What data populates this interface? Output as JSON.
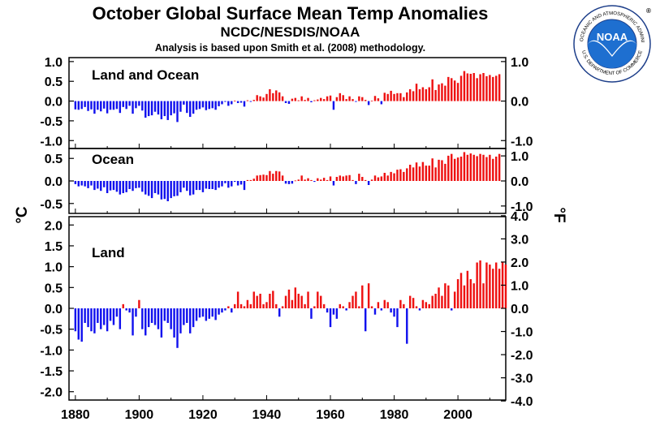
{
  "header": {
    "title": "October Global Surface Mean Temp Anomalies",
    "subtitle": "NCDC/NESDIS/NOAA",
    "note": "Analysis is based upon Smith et al. (2008) methodology."
  },
  "logo": {
    "center_text": "NOAA",
    "ring_top": "NATIONAL OCEANIC AND ATMOSPHERIC ADMINISTRATION",
    "ring_bottom": "U.S. DEPARTMENT OF COMMERCE",
    "registered": "®"
  },
  "colors": {
    "positive": "#ee1111",
    "negative": "#1111ee",
    "logo_blue": "#1e6fd0"
  },
  "axis_labels": {
    "left": "°C",
    "right": "°F"
  },
  "chart_data": [
    {
      "type": "bar",
      "title": "Land and Ocean",
      "xlim": [
        1878,
        2015
      ],
      "ylim": [
        -1.2,
        1.1
      ],
      "yticks": [
        1.0,
        0.5,
        0.0,
        -0.5,
        -1.0
      ],
      "ytick_labels": [
        "1.0",
        "0.5",
        "0.0",
        "-0.5",
        "-1.0"
      ],
      "right_ticks": [
        1.0,
        0.0,
        -1.0
      ],
      "right_tick_labels": [
        "1.0",
        "0.0",
        "-1.0"
      ],
      "x_start": 1880,
      "values": [
        -0.21,
        -0.22,
        -0.2,
        -0.15,
        -0.25,
        -0.21,
        -0.32,
        -0.22,
        -0.26,
        -0.19,
        -0.31,
        -0.22,
        -0.22,
        -0.2,
        -0.3,
        -0.15,
        -0.2,
        -0.12,
        -0.32,
        -0.18,
        -0.12,
        -0.24,
        -0.42,
        -0.38,
        -0.36,
        -0.27,
        -0.34,
        -0.46,
        -0.38,
        -0.48,
        -0.36,
        -0.31,
        -0.53,
        -0.27,
        -0.09,
        -0.3,
        -0.4,
        -0.32,
        -0.22,
        -0.2,
        -0.16,
        -0.23,
        -0.2,
        -0.18,
        -0.22,
        -0.13,
        -0.08,
        -0.02,
        -0.12,
        -0.08,
        0.01,
        -0.05,
        -0.04,
        -0.14,
        0.02,
        -0.02,
        0.03,
        0.15,
        0.12,
        0.09,
        0.18,
        0.3,
        0.2,
        0.27,
        0.22,
        0.12,
        -0.05,
        -0.07,
        0.06,
        0.08,
        0.02,
        0.12,
        0.03,
        0.08,
        -0.03,
        0.02,
        0.04,
        0.08,
        0.05,
        0.12,
        0.14,
        -0.22,
        0.1,
        0.2,
        0.15,
        0.05,
        0.12,
        0.05,
        -0.02,
        0.12,
        0.1,
        0.03,
        -0.1,
        0.01,
        0.13,
        0.07,
        -0.08,
        0.21,
        0.18,
        0.26,
        0.18,
        0.2,
        0.2,
        0.1,
        0.22,
        0.3,
        0.25,
        0.44,
        0.3,
        0.35,
        0.3,
        0.35,
        0.55,
        0.28,
        0.42,
        0.45,
        0.39,
        0.61,
        0.58,
        0.52,
        0.46,
        0.64,
        0.76,
        0.7,
        0.69,
        0.71,
        0.58,
        0.68,
        0.71,
        0.63,
        0.66,
        0.61,
        0.64,
        0.68
      ]
    },
    {
      "type": "bar",
      "title": "Ocean",
      "xlim": [
        1878,
        2015
      ],
      "ylim": [
        -0.72,
        0.72
      ],
      "yticks": [
        0.5,
        0.0,
        -0.5
      ],
      "ytick_labels": [
        "0.5",
        "0.0",
        "-0.5"
      ],
      "right_ticks": [
        0.5556,
        0.0,
        -0.5556
      ],
      "right_tick_labels": [
        "1.0",
        "0.0",
        "-1.0"
      ],
      "x_start": 1880,
      "values": [
        -0.07,
        -0.12,
        -0.1,
        -0.12,
        -0.16,
        -0.1,
        -0.2,
        -0.17,
        -0.22,
        -0.14,
        -0.27,
        -0.21,
        -0.2,
        -0.24,
        -0.3,
        -0.27,
        -0.25,
        -0.18,
        -0.22,
        -0.16,
        -0.15,
        -0.24,
        -0.3,
        -0.33,
        -0.38,
        -0.27,
        -0.3,
        -0.41,
        -0.4,
        -0.45,
        -0.38,
        -0.34,
        -0.33,
        -0.25,
        -0.15,
        -0.22,
        -0.32,
        -0.3,
        -0.2,
        -0.2,
        -0.25,
        -0.17,
        -0.18,
        -0.18,
        -0.2,
        -0.15,
        -0.12,
        -0.05,
        -0.15,
        -0.12,
        -0.02,
        -0.1,
        -0.08,
        -0.2,
        0.02,
        0.02,
        0.05,
        0.12,
        0.13,
        0.14,
        0.13,
        0.22,
        0.16,
        0.22,
        0.21,
        0.12,
        -0.06,
        -0.07,
        -0.06,
        0.01,
        0.03,
        0.12,
        0.03,
        0.06,
        0.02,
        -0.02,
        0.06,
        0.03,
        0.07,
        0.02,
        0.1,
        -0.1,
        0.09,
        0.12,
        0.1,
        0.12,
        0.13,
        0.02,
        -0.07,
        0.16,
        0.09,
        0.02,
        -0.09,
        0.03,
        0.12,
        0.08,
        0.1,
        0.18,
        0.12,
        0.2,
        0.17,
        0.25,
        0.26,
        0.2,
        0.28,
        0.36,
        0.3,
        0.41,
        0.32,
        0.42,
        0.34,
        0.34,
        0.5,
        0.3,
        0.47,
        0.46,
        0.38,
        0.56,
        0.6,
        0.49,
        0.52,
        0.54,
        0.64,
        0.58,
        0.61,
        0.58,
        0.55,
        0.6,
        0.58,
        0.53,
        0.58,
        0.49,
        0.54,
        0.6
      ]
    },
    {
      "type": "bar",
      "title": "Land",
      "xlim": [
        1878,
        2015
      ],
      "ylim": [
        -2.2,
        2.2
      ],
      "yticks": [
        2.0,
        1.5,
        1.0,
        0.5,
        0.0,
        -0.5,
        -1.0,
        -1.5,
        -2.0
      ],
      "ytick_labels": [
        "2.0",
        "1.5",
        "1.0",
        "0.5",
        "0.0",
        "-0.5",
        "-1.0",
        "-1.5",
        "-2.0"
      ],
      "right_ticks": [
        2.2222,
        1.6667,
        1.1111,
        0.5556,
        0.0,
        -0.5556,
        -1.1111,
        -1.6667,
        -2.2222
      ],
      "right_tick_labels": [
        "4.0",
        "3.0",
        "2.0",
        "1.0",
        "0.0",
        "-1.0",
        "-2.0",
        "-3.0",
        "-4.0"
      ],
      "x_start": 1880,
      "values": [
        -0.55,
        -0.75,
        -0.8,
        -0.35,
        -0.45,
        -0.55,
        -0.6,
        -0.35,
        -0.5,
        -0.4,
        -0.55,
        -0.3,
        -0.4,
        -0.2,
        -0.5,
        0.1,
        -0.05,
        -0.1,
        -0.65,
        -0.2,
        0.2,
        -0.5,
        -0.65,
        -0.45,
        -0.35,
        -0.4,
        -0.5,
        -0.7,
        -0.3,
        -0.35,
        -0.5,
        -0.7,
        -0.95,
        -0.6,
        -0.4,
        -0.35,
        -0.6,
        -0.45,
        -0.3,
        -0.22,
        -0.2,
        -0.3,
        -0.25,
        -0.2,
        -0.28,
        -0.15,
        -0.1,
        -0.05,
        0.05,
        -0.1,
        0.1,
        0.4,
        0.1,
        0.05,
        0.2,
        0.1,
        0.4,
        0.3,
        0.35,
        0.1,
        0.15,
        0.35,
        0.42,
        0.1,
        -0.2,
        0.05,
        0.3,
        0.45,
        0.2,
        0.5,
        0.35,
        0.3,
        0.1,
        0.4,
        -0.25,
        0.05,
        0.4,
        0.3,
        0.1,
        -0.1,
        -0.45,
        -0.15,
        -0.25,
        0.1,
        0.05,
        -0.05,
        0.15,
        0.3,
        0.4,
        0.05,
        0.55,
        -0.55,
        0.6,
        0.05,
        -0.15,
        0.15,
        -0.05,
        0.2,
        0.15,
        -0.1,
        -0.2,
        -0.45,
        0.2,
        0.1,
        -0.85,
        0.3,
        0.25,
        0.05,
        -0.05,
        0.2,
        0.15,
        0.1,
        0.3,
        0.35,
        0.5,
        0.3,
        0.6,
        0.55,
        -0.05,
        0.4,
        0.7,
        0.85,
        0.55,
        0.9,
        0.7,
        0.6,
        1.1,
        1.15,
        0.6,
        1.1,
        1.05,
        0.95,
        1.1,
        0.95,
        1.1,
        1.05
      ]
    }
  ],
  "x_axis": {
    "ticks": [
      1880,
      1900,
      1920,
      1940,
      1960,
      1980,
      2000
    ]
  }
}
